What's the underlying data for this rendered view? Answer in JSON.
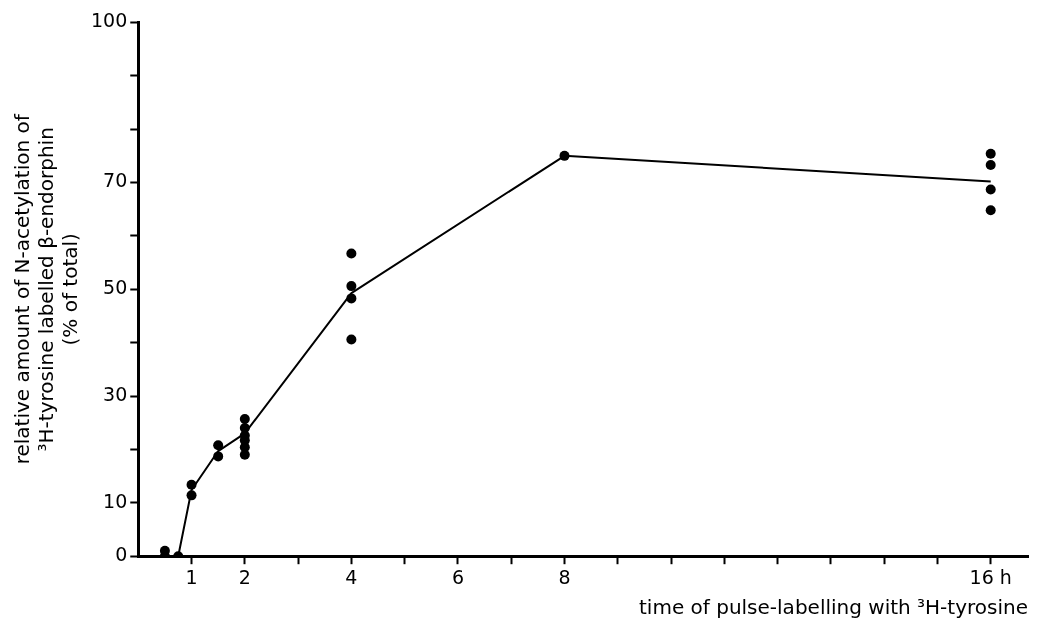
{
  "chart_data": {
    "type": "scatter",
    "xlabel": "time of pulse-labelling with ³H-tyrosine",
    "ylabel": "relative amount of N-acetylation of\n³H-tyrosine labelled β-endorphin\n(% of total)",
    "x": [
      0.5,
      0.5,
      0.75,
      1,
      1,
      1.5,
      1.5,
      2,
      2,
      2,
      2,
      2,
      2,
      4,
      4,
      4,
      4,
      8,
      16,
      16,
      16,
      16
    ],
    "series": [
      {
        "color": "#000000",
        "values": [
          1,
          0,
          0,
          13.4,
          11.4,
          20.8,
          18.7,
          25.7,
          24,
          22.6,
          21.7,
          20.4,
          19,
          56.7,
          50.6,
          48.3,
          40.6,
          75,
          75.4,
          73.3,
          68.7,
          64.8
        ],
        "marker": "circle"
      },
      {
        "type": "line",
        "color": "#000000",
        "x": [
          0.75,
          1,
          1.5,
          2,
          4,
          8,
          16
        ],
        "values": [
          0,
          12.4,
          19.7,
          23,
          49.3,
          75,
          70.2
        ],
        "marker": "none",
        "line_style": "solid"
      }
    ],
    "xlim": [
      0,
      16.7
    ],
    "xticks": [
      1,
      2,
      {
        "value": 3,
        "label": null
      },
      4,
      {
        "value": 5,
        "label": null
      },
      6,
      {
        "value": 7,
        "label": null
      },
      8,
      {
        "value": 9,
        "label": null
      },
      {
        "value": 10,
        "label": null
      },
      {
        "value": 11,
        "label": null
      },
      {
        "value": 12,
        "label": null
      },
      {
        "value": 13,
        "label": null
      },
      {
        "value": 14,
        "label": null
      },
      {
        "value": 15,
        "label": null
      },
      {
        "value": 16,
        "label": "16 h"
      }
    ],
    "ylim": [
      0,
      100
    ],
    "yticks": [
      0,
      10,
      {
        "value": 20,
        "label": null
      },
      30,
      {
        "value": 40,
        "label": null
      },
      50,
      {
        "value": 60,
        "label": null
      },
      70,
      {
        "value": 80,
        "label": null
      },
      {
        "value": 90,
        "label": null
      },
      100
    ],
    "grid": false,
    "legend": false
  }
}
